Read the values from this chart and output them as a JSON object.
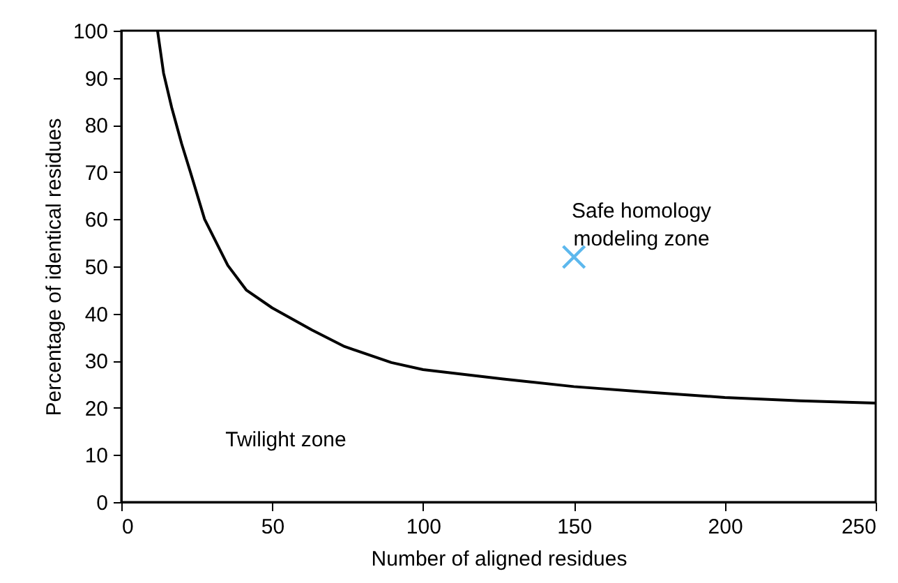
{
  "chart_data": {
    "type": "line",
    "xlabel": "Number of aligned residues",
    "ylabel": "Percentage of identical residues",
    "xlim": [
      0,
      250
    ],
    "xticks": [
      0,
      50,
      100,
      150,
      200,
      250
    ],
    "ylim": [
      0,
      100
    ],
    "yticks": [
      0,
      10,
      20,
      30,
      40,
      50,
      60,
      70,
      80,
      90,
      100
    ],
    "grid": false,
    "series": [
      {
        "color": "#000000",
        "marker": "none",
        "line_style": "solid",
        "x": [
          12,
          14,
          16.7,
          20,
          22.9,
          27.6,
          35.3,
          41.4,
          50,
          63.2,
          74,
          89.5,
          100,
          126.6,
          150,
          175,
          200,
          225,
          250
        ],
        "values": [
          100,
          91,
          83.7,
          76,
          70,
          60,
          50.2,
          45,
          41.2,
          36.5,
          33,
          29.6,
          28.1,
          26.1,
          24.5,
          23.3,
          22.2,
          21.5,
          21
        ]
      },
      {
        "type": "scatter",
        "color": "#1a9be6",
        "marker": "cross",
        "x": [
          150
        ],
        "values": [
          52
        ]
      }
    ],
    "annotations": [
      "Safe homology\nmodeling zone",
      "Twilight zone"
    ]
  }
}
